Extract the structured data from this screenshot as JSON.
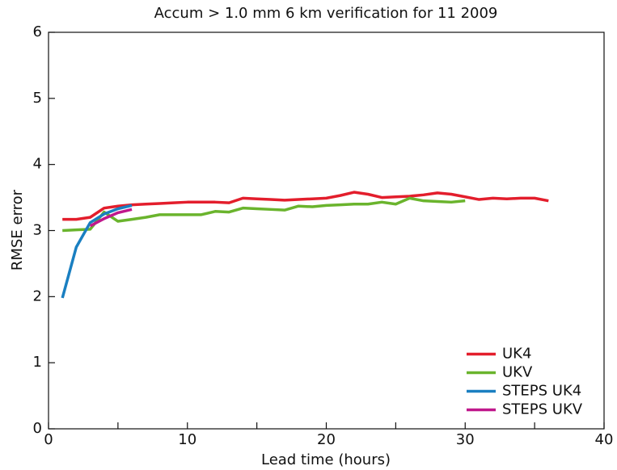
{
  "chart_data": {
    "type": "line",
    "title": "Accum > 1.0 mm 6 km verification for 11 2009",
    "x_label": "Lead time (hours)",
    "y_label": "RMSE error",
    "xlim": [
      0,
      40
    ],
    "xticks": [
      0,
      10,
      20,
      30,
      40
    ],
    "xminor": [
      5,
      15,
      25,
      35
    ],
    "ylim": [
      0,
      6
    ],
    "yticks": [
      0,
      1,
      2,
      3,
      4,
      5,
      6
    ],
    "legend": "lower right",
    "series": [
      {
        "name": "UK4",
        "color": "#e31e2c",
        "x": [
          1,
          2,
          3,
          4,
          5,
          6,
          7,
          8,
          9,
          10,
          11,
          12,
          13,
          14,
          15,
          16,
          17,
          18,
          19,
          20,
          21,
          22,
          23,
          24,
          25,
          26,
          27,
          28,
          29,
          30,
          31,
          32,
          33,
          34,
          35,
          36
        ],
        "values": [
          3.17,
          3.17,
          3.2,
          3.34,
          3.37,
          3.39,
          3.4,
          3.41,
          3.42,
          3.43,
          3.43,
          3.43,
          3.42,
          3.49,
          3.48,
          3.47,
          3.46,
          3.47,
          3.48,
          3.49,
          3.53,
          3.58,
          3.55,
          3.5,
          3.51,
          3.52,
          3.54,
          3.57,
          3.55,
          3.51,
          3.47,
          3.49,
          3.48,
          3.49,
          3.49,
          3.45
        ]
      },
      {
        "name": "UKV",
        "color": "#6ab42d",
        "x": [
          1,
          2,
          3,
          4,
          5,
          6,
          7,
          8,
          9,
          10,
          11,
          12,
          13,
          14,
          15,
          16,
          17,
          18,
          19,
          20,
          21,
          22,
          23,
          24,
          25,
          26,
          27,
          28,
          29,
          30
        ],
        "values": [
          3.0,
          3.01,
          3.02,
          3.28,
          3.14,
          3.17,
          3.2,
          3.24,
          3.24,
          3.24,
          3.24,
          3.29,
          3.28,
          3.34,
          3.33,
          3.32,
          3.31,
          3.37,
          3.36,
          3.38,
          3.39,
          3.4,
          3.4,
          3.43,
          3.4,
          3.49,
          3.45,
          3.44,
          3.43,
          3.45
        ]
      },
      {
        "name": "STEPS UK4",
        "color": "#1a7fc1",
        "x": [
          1,
          2,
          3,
          4,
          5,
          6
        ],
        "values": [
          1.98,
          2.75,
          3.12,
          3.25,
          3.33,
          3.38
        ]
      },
      {
        "name": "STEPS UKV",
        "color": "#c0188c",
        "x": [
          3,
          4,
          5,
          6
        ],
        "values": [
          3.07,
          3.18,
          3.27,
          3.32
        ]
      }
    ]
  }
}
